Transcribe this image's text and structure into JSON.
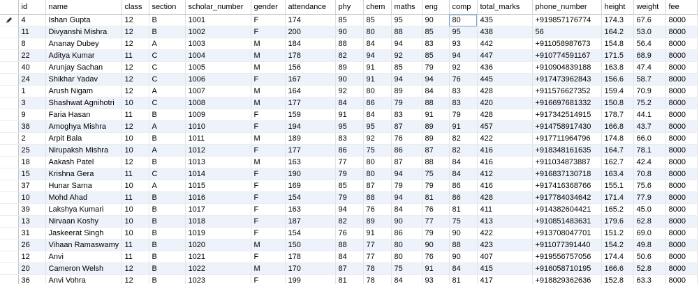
{
  "columns": [
    "id",
    "name",
    "class",
    "section",
    "scholar_number",
    "gender",
    "attendance",
    "phy",
    "chem",
    "maths",
    "eng",
    "comp",
    "total_marks",
    "phone_number",
    "height",
    "weight",
    "fee"
  ],
  "editing": {
    "row": 0,
    "column": "comp"
  },
  "row_indicator_icon": "pencil-icon",
  "colors": {
    "alt_row": "#eef3fb",
    "edit_outline": "#7a9cd6"
  },
  "rows": [
    [
      "4",
      "Ishan Gupta",
      "12",
      "B",
      "1001",
      "F",
      "174",
      "85",
      "85",
      "95",
      "90",
      "80",
      "435",
      "+919857176774",
      "174.3",
      "67.6",
      "8000"
    ],
    [
      "11",
      "Divyanshi Mishra",
      "12",
      "B",
      "1002",
      "F",
      "200",
      "90",
      "80",
      "88",
      "85",
      "95",
      "438",
      "56",
      "164.2",
      "53.0",
      "8000"
    ],
    [
      "8",
      "Ananay Dubey",
      "12",
      "A",
      "1003",
      "M",
      "184",
      "88",
      "84",
      "94",
      "83",
      "93",
      "442",
      "+911058987673",
      "154.8",
      "56.4",
      "8000"
    ],
    [
      "22",
      "Aditya Kumar",
      "11",
      "C",
      "1004",
      "M",
      "178",
      "82",
      "94",
      "92",
      "85",
      "94",
      "447",
      "+910774591167",
      "171.5",
      "68.9",
      "8000"
    ],
    [
      "40",
      "Arunjay Sachan",
      "12",
      "C",
      "1005",
      "M",
      "156",
      "89",
      "91",
      "85",
      "79",
      "92",
      "436",
      "+910904839188",
      "163.8",
      "47.4",
      "8000"
    ],
    [
      "24",
      "Shikhar Yadav",
      "12",
      "C",
      "1006",
      "F",
      "167",
      "90",
      "91",
      "94",
      "94",
      "76",
      "445",
      "+917473962843",
      "156.6",
      "58.7",
      "8000"
    ],
    [
      "1",
      "Arush Nigam",
      "12",
      "A",
      "1007",
      "M",
      "164",
      "92",
      "80",
      "89",
      "84",
      "83",
      "428",
      "+911576627352",
      "159.4",
      "70.9",
      "8000"
    ],
    [
      "3",
      "Shashwat Agnihotri",
      "10",
      "C",
      "1008",
      "M",
      "177",
      "84",
      "86",
      "79",
      "88",
      "83",
      "420",
      "+916697681332",
      "150.8",
      "75.2",
      "8000"
    ],
    [
      "9",
      "Faria Hasan",
      "11",
      "B",
      "1009",
      "F",
      "159",
      "91",
      "84",
      "83",
      "91",
      "79",
      "428",
      "+917342514915",
      "178.7",
      "44.1",
      "8000"
    ],
    [
      "38",
      "Amoghya Mishra",
      "12",
      "A",
      "1010",
      "F",
      "194",
      "95",
      "95",
      "87",
      "89",
      "91",
      "457",
      "+914758917430",
      "166.8",
      "43.7",
      "8000"
    ],
    [
      "2",
      "Arpit Bala",
      "10",
      "B",
      "1011",
      "M",
      "189",
      "83",
      "92",
      "76",
      "89",
      "82",
      "422",
      "+917711964796",
      "174.8",
      "66.0",
      "8000"
    ],
    [
      "25",
      "Nirupaksh Mishra",
      "10",
      "A",
      "1012",
      "F",
      "177",
      "86",
      "75",
      "86",
      "87",
      "82",
      "416",
      "+918348161635",
      "164.7",
      "78.1",
      "8000"
    ],
    [
      "18",
      "Aakash Patel",
      "12",
      "B",
      "1013",
      "M",
      "163",
      "77",
      "80",
      "87",
      "88",
      "84",
      "416",
      "+911034873887",
      "162.7",
      "42.4",
      "8000"
    ],
    [
      "15",
      "Krishna Gera",
      "11",
      "C",
      "1014",
      "F",
      "190",
      "79",
      "80",
      "94",
      "75",
      "84",
      "412",
      "+916837130718",
      "163.4",
      "70.8",
      "8000"
    ],
    [
      "37",
      "Hunar Sarna",
      "10",
      "A",
      "1015",
      "F",
      "169",
      "85",
      "87",
      "79",
      "79",
      "86",
      "416",
      "+917416368766",
      "155.1",
      "75.6",
      "8000"
    ],
    [
      "10",
      "Mohd Ahad",
      "11",
      "B",
      "1016",
      "F",
      "154",
      "79",
      "88",
      "94",
      "81",
      "86",
      "428",
      "+917784034642",
      "171.4",
      "77.9",
      "8000"
    ],
    [
      "39",
      "Lakshya Kumari",
      "10",
      "B",
      "1017",
      "F",
      "163",
      "94",
      "76",
      "84",
      "76",
      "81",
      "411",
      "+914382604421",
      "165.2",
      "45.0",
      "8000"
    ],
    [
      "13",
      "Nirvaan Koshy",
      "10",
      "B",
      "1018",
      "F",
      "187",
      "82",
      "89",
      "90",
      "77",
      "75",
      "413",
      "+910851483631",
      "179.6",
      "62.8",
      "8000"
    ],
    [
      "31",
      "Jaskeerat Singh",
      "10",
      "B",
      "1019",
      "F",
      "154",
      "76",
      "91",
      "86",
      "79",
      "90",
      "422",
      "+913708047701",
      "151.2",
      "69.0",
      "8000"
    ],
    [
      "26",
      "Vihaan Ramaswamy",
      "11",
      "B",
      "1020",
      "M",
      "150",
      "88",
      "77",
      "80",
      "90",
      "88",
      "423",
      "+911077391440",
      "154.2",
      "49.8",
      "8000"
    ],
    [
      "12",
      "Anvi",
      "11",
      "B",
      "1021",
      "F",
      "178",
      "84",
      "77",
      "80",
      "76",
      "90",
      "407",
      "+919556757056",
      "174.4",
      "50.6",
      "8000"
    ],
    [
      "20",
      "Cameron Welsh",
      "12",
      "B",
      "1022",
      "M",
      "170",
      "87",
      "78",
      "75",
      "91",
      "84",
      "415",
      "+916058710195",
      "166.6",
      "52.8",
      "8000"
    ],
    [
      "36",
      "Anvi Vohra",
      "12",
      "B",
      "1023",
      "F",
      "199",
      "81",
      "78",
      "84",
      "93",
      "81",
      "417",
      "+918829362636",
      "152.8",
      "63.3",
      "8000"
    ]
  ]
}
